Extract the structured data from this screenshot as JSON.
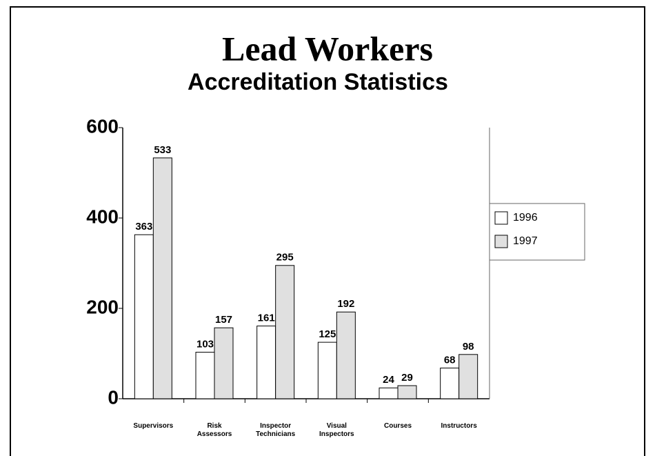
{
  "chart_data": {
    "type": "bar",
    "title": "Lead Workers",
    "subtitle": "Accreditation Statistics",
    "categories": [
      "Supervisors",
      "Risk\nAssessors",
      "Inspector\nTechnicians",
      "Visual\nInspectors",
      "Courses",
      "Instructors"
    ],
    "series": [
      {
        "name": "1996",
        "color": "#ffffff",
        "values": [
          363,
          103,
          161,
          125,
          24,
          68
        ]
      },
      {
        "name": "1997",
        "color": "#e0e0e0",
        "values": [
          533,
          157,
          295,
          192,
          29,
          98
        ]
      }
    ],
    "ylim": [
      0,
      600
    ],
    "yticks": [
      0,
      200,
      400,
      600
    ],
    "grid": false,
    "legend": "right"
  }
}
